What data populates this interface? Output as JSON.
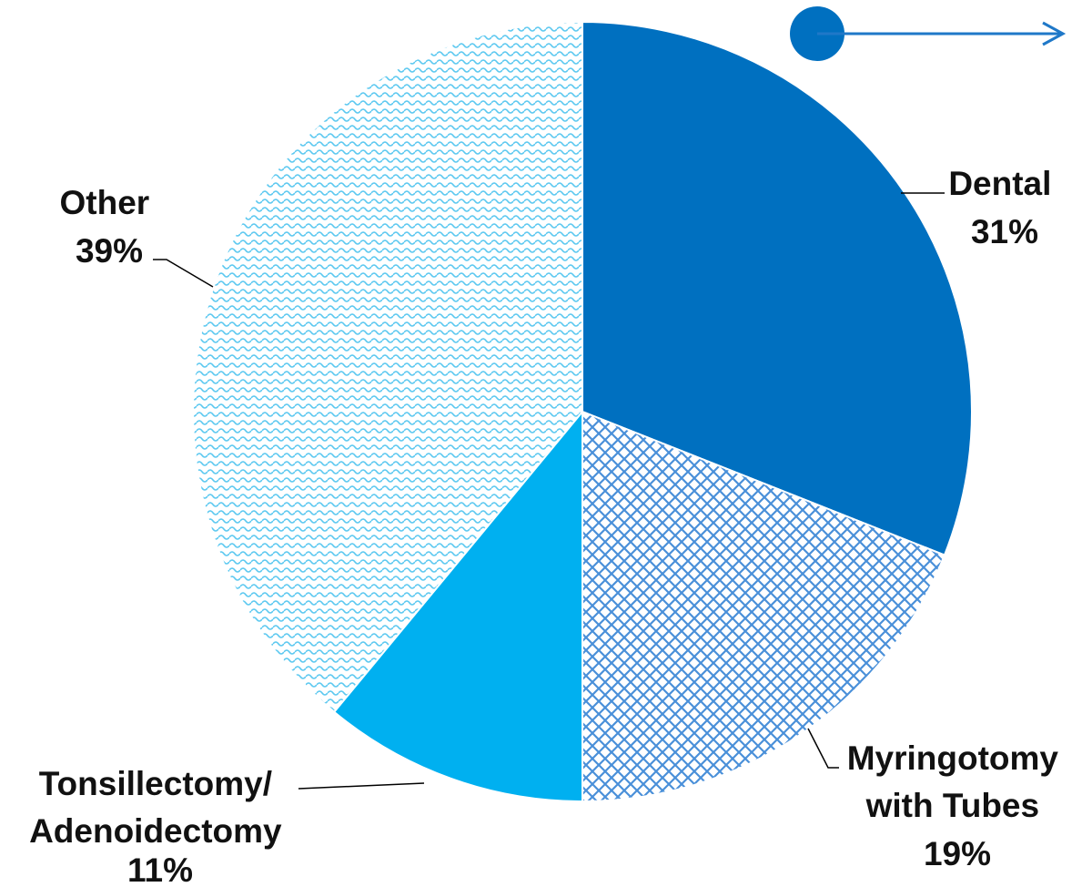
{
  "chart_data": {
    "type": "pie",
    "slices": [
      {
        "label_lines": [
          "Dental"
        ],
        "pct_label": "31%",
        "value": 31,
        "color": "#0070c0",
        "fill": "solid"
      },
      {
        "label_lines": [
          "Myringotomy",
          "with Tubes"
        ],
        "pct_label": "19%",
        "value": 19,
        "color": "#4a90d9",
        "fill": "crosshatch"
      },
      {
        "label_lines": [
          "Tonsillectomy/",
          "Adenoidectomy"
        ],
        "pct_label": "11%",
        "value": 11,
        "color": "#00b0f0",
        "fill": "solid"
      },
      {
        "label_lines": [
          "Other"
        ],
        "pct_label": "39%",
        "value": 39,
        "color": "#5bc8f0",
        "fill": "wave"
      }
    ],
    "start_angle": "12 o'clock",
    "direction": "clockwise"
  },
  "decoration": {
    "connector_icon": "dot-arrow-right-icon",
    "color": "#1f78c8"
  }
}
